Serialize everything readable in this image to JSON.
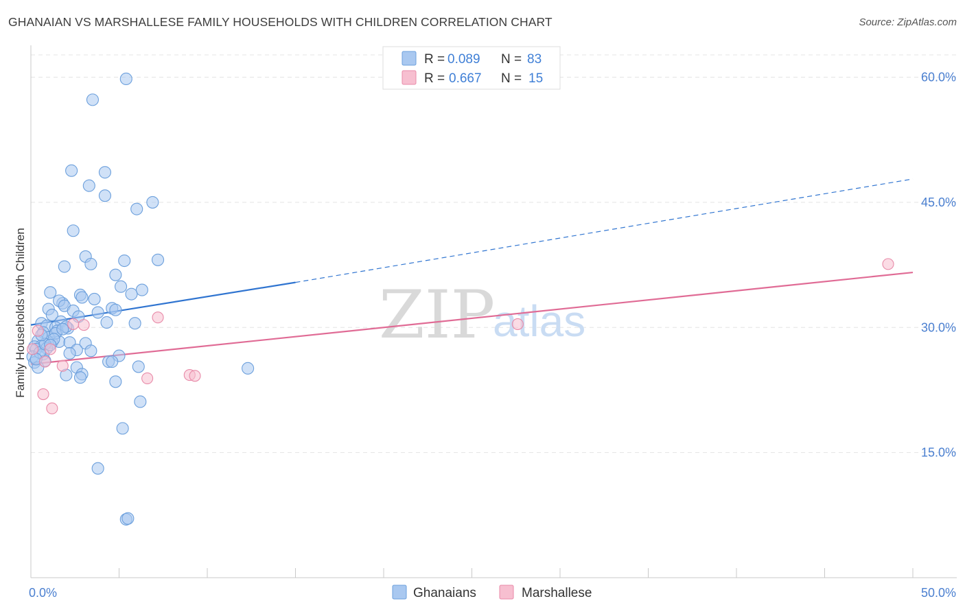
{
  "chart_data": {
    "type": "scatter",
    "title": "GHANAIAN VS MARSHALLESE FAMILY HOUSEHOLDS WITH CHILDREN CORRELATION CHART",
    "source": "Source: ZipAtlas.com",
    "xlabel": "",
    "ylabel": "Family Households with Children",
    "xlim": [
      0,
      50
    ],
    "ylim": [
      0,
      63.5
    ],
    "x_tick_labels": {
      "min": "0.0%",
      "max": "50.0%"
    },
    "y_ticks": [
      {
        "value": 15,
        "label": "15.0%"
      },
      {
        "value": 30,
        "label": "30.0%"
      },
      {
        "value": 45,
        "label": "45.0%"
      },
      {
        "value": 60,
        "label": "60.0%"
      }
    ],
    "grid": true,
    "legend_box": {
      "rows": [
        {
          "r_label": "R =",
          "r_value": "0.089",
          "n_label": "N =",
          "n_value": "83",
          "color": "#a9c8f0"
        },
        {
          "r_label": "R =",
          "r_value": "0.667",
          "n_label": "N =",
          "n_value": "15",
          "color": "#f7bfd0"
        }
      ]
    },
    "series": [
      {
        "name": "Ghanaians",
        "color": "#a9c8f0",
        "edge": "#6b9fdc",
        "trend": {
          "x0": 0,
          "y0": 30.3,
          "x1": 15,
          "y1": 35.4,
          "dash_to_x": 50,
          "dash_to_y": 47.8,
          "color": "#2f74d0"
        },
        "points": [
          [
            5.4,
            59.8
          ],
          [
            3.5,
            57.3
          ],
          [
            2.3,
            48.8
          ],
          [
            4.2,
            48.6
          ],
          [
            3.3,
            47.0
          ],
          [
            4.2,
            45.8
          ],
          [
            6.9,
            45.0
          ],
          [
            6.0,
            44.2
          ],
          [
            2.4,
            41.6
          ],
          [
            3.1,
            38.5
          ],
          [
            5.3,
            38.0
          ],
          [
            7.2,
            38.1
          ],
          [
            1.9,
            37.3
          ],
          [
            3.4,
            37.6
          ],
          [
            4.8,
            36.3
          ],
          [
            6.3,
            34.5
          ],
          [
            1.1,
            34.2
          ],
          [
            2.8,
            33.9
          ],
          [
            3.6,
            33.4
          ],
          [
            5.1,
            34.9
          ],
          [
            5.7,
            34.0
          ],
          [
            2.9,
            33.6
          ],
          [
            1.8,
            32.9
          ],
          [
            1.6,
            33.2
          ],
          [
            1.9,
            32.6
          ],
          [
            4.6,
            32.3
          ],
          [
            1.0,
            32.2
          ],
          [
            2.4,
            32.0
          ],
          [
            3.8,
            31.8
          ],
          [
            4.8,
            32.1
          ],
          [
            1.2,
            31.5
          ],
          [
            2.7,
            31.3
          ],
          [
            1.7,
            30.7
          ],
          [
            0.6,
            30.5
          ],
          [
            0.9,
            30.2
          ],
          [
            2.1,
            29.9
          ],
          [
            1.4,
            30.0
          ],
          [
            1.5,
            29.6
          ],
          [
            0.7,
            29.4
          ],
          [
            1.0,
            28.8
          ],
          [
            4.3,
            30.6
          ],
          [
            5.9,
            30.5
          ],
          [
            0.4,
            28.4
          ],
          [
            1.2,
            28.2
          ],
          [
            1.6,
            28.3
          ],
          [
            0.6,
            27.8
          ],
          [
            0.2,
            27.7
          ],
          [
            3.1,
            28.1
          ],
          [
            2.2,
            28.2
          ],
          [
            0.3,
            27.4
          ],
          [
            0.9,
            27.5
          ],
          [
            2.6,
            27.3
          ],
          [
            3.4,
            27.2
          ],
          [
            0.7,
            26.8
          ],
          [
            0.1,
            26.5
          ],
          [
            5.0,
            26.6
          ],
          [
            0.8,
            26.0
          ],
          [
            0.2,
            25.8
          ],
          [
            4.4,
            25.9
          ],
          [
            4.6,
            25.9
          ],
          [
            6.1,
            25.3
          ],
          [
            12.3,
            25.1
          ],
          [
            0.4,
            25.2
          ],
          [
            2.6,
            25.2
          ],
          [
            2.0,
            24.3
          ],
          [
            2.9,
            24.4
          ],
          [
            2.8,
            24.0
          ],
          [
            4.8,
            23.5
          ],
          [
            6.2,
            21.1
          ],
          [
            5.2,
            17.9
          ],
          [
            3.8,
            13.1
          ],
          [
            5.4,
            7.0
          ],
          [
            5.5,
            7.1
          ],
          [
            1.4,
            29.3
          ],
          [
            0.5,
            27.0
          ],
          [
            1.3,
            28.6
          ],
          [
            2.0,
            30.1
          ],
          [
            0.8,
            28.0
          ],
          [
            0.3,
            26.2
          ],
          [
            1.1,
            27.9
          ],
          [
            0.6,
            29.1
          ],
          [
            1.8,
            29.8
          ],
          [
            2.2,
            26.9
          ]
        ]
      },
      {
        "name": "Marshallese",
        "color": "#f7bfd0",
        "edge": "#e88aa8",
        "trend": {
          "x0": 0,
          "y0": 25.6,
          "x1": 50,
          "y1": 36.6,
          "color": "#e06b95"
        },
        "points": [
          [
            0.1,
            27.4
          ],
          [
            0.4,
            29.6
          ],
          [
            1.1,
            27.4
          ],
          [
            0.8,
            25.9
          ],
          [
            1.8,
            25.4
          ],
          [
            3.0,
            30.3
          ],
          [
            2.4,
            30.4
          ],
          [
            7.2,
            31.2
          ],
          [
            6.6,
            23.9
          ],
          [
            9.0,
            24.3
          ],
          [
            9.3,
            24.2
          ],
          [
            0.7,
            22.0
          ],
          [
            1.2,
            20.3
          ],
          [
            27.6,
            30.4
          ],
          [
            48.6,
            37.6
          ]
        ]
      }
    ]
  }
}
